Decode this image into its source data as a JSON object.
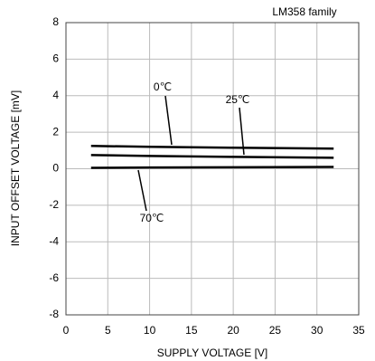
{
  "chart_data": {
    "type": "line",
    "note": "LM358 family",
    "xlabel": "SUPPLY VOLTAGE [V]",
    "ylabel": "INPUT OFFSET VOLTAGE [mV]",
    "x": [
      3,
      10,
      20,
      32
    ],
    "series": [
      {
        "name": "0℃",
        "color": "#000000",
        "values": [
          1.25,
          1.2,
          1.15,
          1.1
        ]
      },
      {
        "name": "25℃",
        "color": "#000000",
        "values": [
          0.75,
          0.7,
          0.65,
          0.6
        ]
      },
      {
        "name": "70℃",
        "color": "#000000",
        "values": [
          0.05,
          0.07,
          0.08,
          0.1
        ]
      }
    ],
    "xlim": [
      0,
      35
    ],
    "xticks": [
      0,
      5,
      10,
      15,
      20,
      25,
      30,
      35
    ],
    "ylim": [
      -8,
      8
    ],
    "yticks": [
      -8,
      -6,
      -4,
      -2,
      0,
      2,
      4,
      6,
      8
    ],
    "grid": true
  }
}
